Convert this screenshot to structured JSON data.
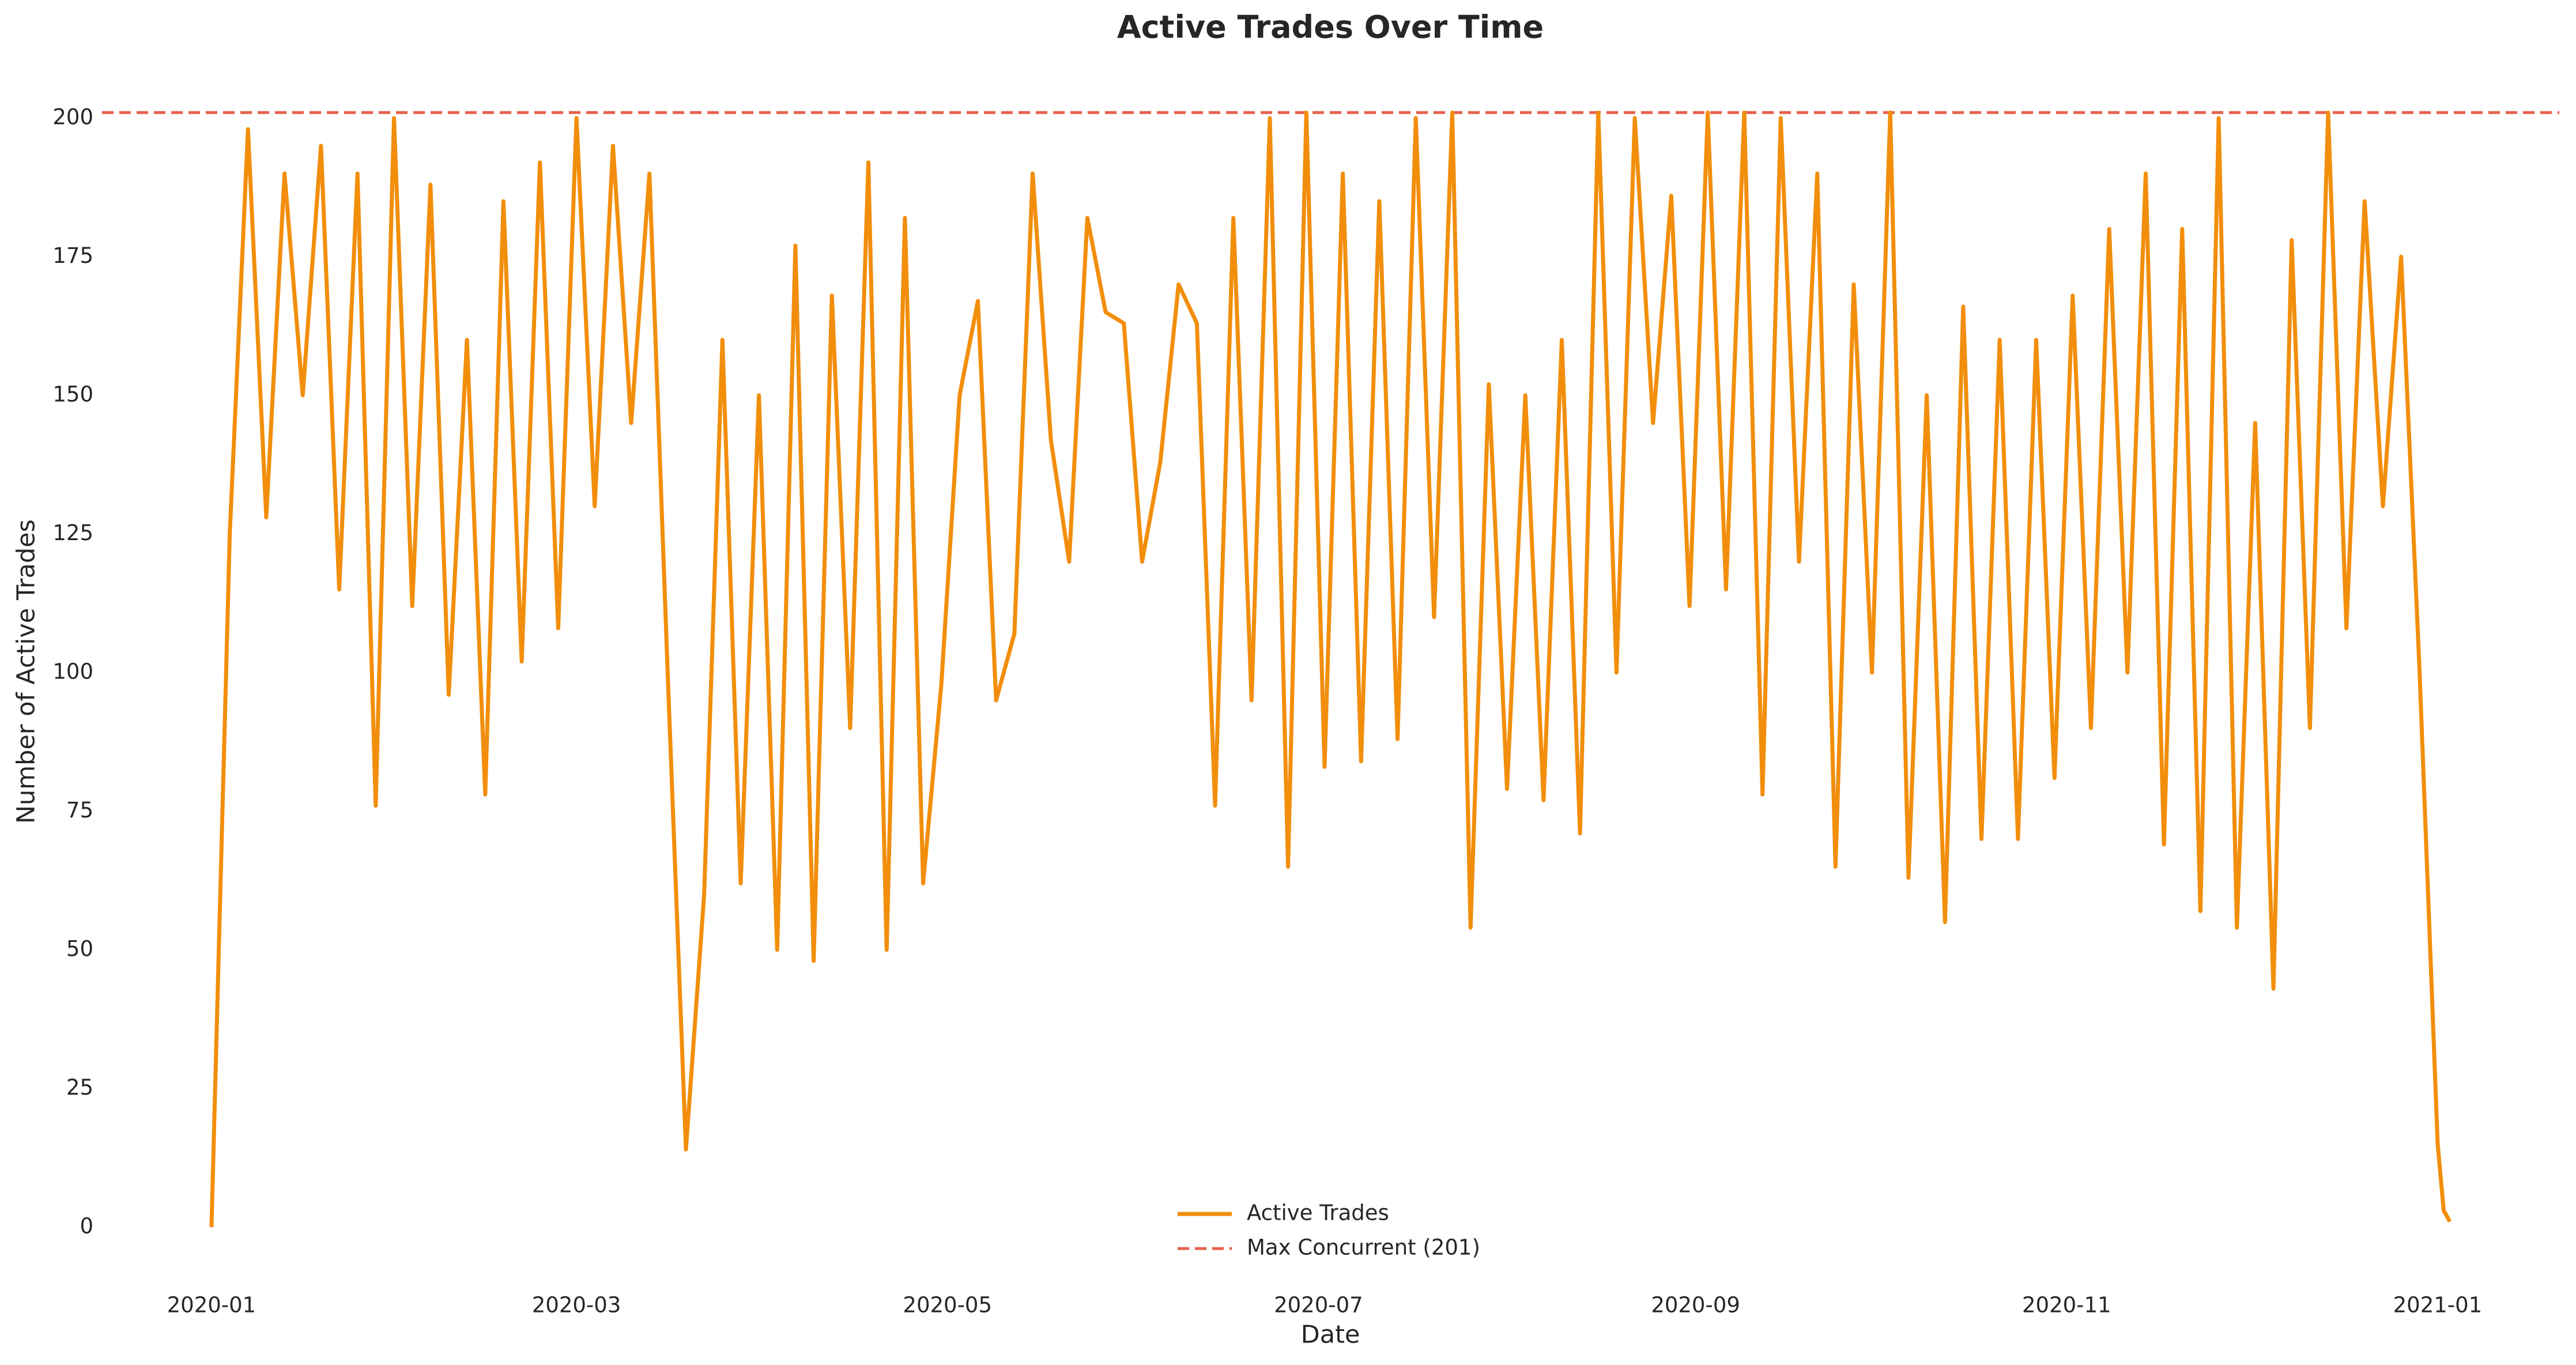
{
  "chart_data": {
    "type": "line",
    "title": "Active Trades Over Time",
    "xlabel": "Date",
    "ylabel": "Number of Active Trades",
    "x": [
      0,
      3,
      6,
      9,
      12,
      15,
      18,
      21,
      24,
      27,
      30,
      33,
      36,
      39,
      42,
      45,
      48,
      51,
      54,
      57,
      60,
      63,
      66,
      69,
      72,
      75,
      78,
      81,
      84,
      87,
      90,
      93,
      96,
      99,
      102,
      105,
      108,
      111,
      114,
      117,
      120,
      123,
      126,
      129,
      132,
      135,
      138,
      141,
      144,
      147,
      150,
      153,
      156,
      159,
      162,
      165,
      168,
      171,
      174,
      177,
      180,
      183,
      186,
      189,
      192,
      195,
      198,
      201,
      204,
      207,
      210,
      213,
      216,
      219,
      222,
      225,
      228,
      231,
      234,
      237,
      240,
      243,
      246,
      249,
      252,
      255,
      258,
      261,
      264,
      267,
      270,
      273,
      276,
      279,
      282,
      285,
      288,
      291,
      294,
      297,
      300,
      303,
      306,
      309,
      312,
      315,
      318,
      321,
      324,
      327,
      330,
      333,
      336,
      339,
      342,
      345,
      348,
      351,
      354,
      357,
      360,
      363,
      366,
      367,
      368
    ],
    "series": [
      {
        "name": "Active Trades",
        "color": "#f28e0b",
        "values": [
          0,
          125,
          198,
          128,
          190,
          150,
          195,
          115,
          190,
          76,
          200,
          112,
          188,
          96,
          160,
          78,
          185,
          102,
          192,
          108,
          200,
          130,
          195,
          145,
          190,
          100,
          14,
          60,
          160,
          62,
          150,
          50,
          177,
          48,
          168,
          90,
          192,
          50,
          182,
          62,
          98,
          150,
          167,
          95,
          107,
          190,
          142,
          120,
          182,
          165,
          163,
          120,
          138,
          170,
          163,
          76,
          182,
          95,
          200,
          65,
          201,
          83,
          190,
          84,
          185,
          88,
          200,
          110,
          201,
          54,
          152,
          79,
          150,
          77,
          160,
          71,
          201,
          100,
          200,
          145,
          186,
          112,
          201,
          115,
          201,
          78,
          200,
          120,
          190,
          65,
          170,
          100,
          201,
          63,
          150,
          55,
          166,
          70,
          160,
          70,
          160,
          81,
          168,
          90,
          180,
          100,
          190,
          69,
          180,
          57,
          200,
          54,
          145,
          43,
          178,
          90,
          201,
          108,
          185,
          130,
          175,
          101,
          15,
          3,
          1
        ]
      }
    ],
    "hlines": [
      {
        "name": "Max Concurrent (201)",
        "value": 201,
        "color": "#e8604c",
        "dashed": true
      }
    ],
    "xlim": [
      -18,
      386
    ],
    "xticks": [
      {
        "value": 0,
        "label": "2020-01"
      },
      {
        "value": 60,
        "label": "2020-03"
      },
      {
        "value": 121,
        "label": "2020-05"
      },
      {
        "value": 182,
        "label": "2020-07"
      },
      {
        "value": 244,
        "label": "2020-09"
      },
      {
        "value": 305,
        "label": "2020-11"
      },
      {
        "value": 366,
        "label": "2021-01"
      }
    ],
    "ylim": [
      -10,
      211
    ],
    "yticks": [
      0,
      25,
      50,
      75,
      100,
      125,
      150,
      175,
      200
    ],
    "grid": false,
    "legend": "lower center"
  }
}
